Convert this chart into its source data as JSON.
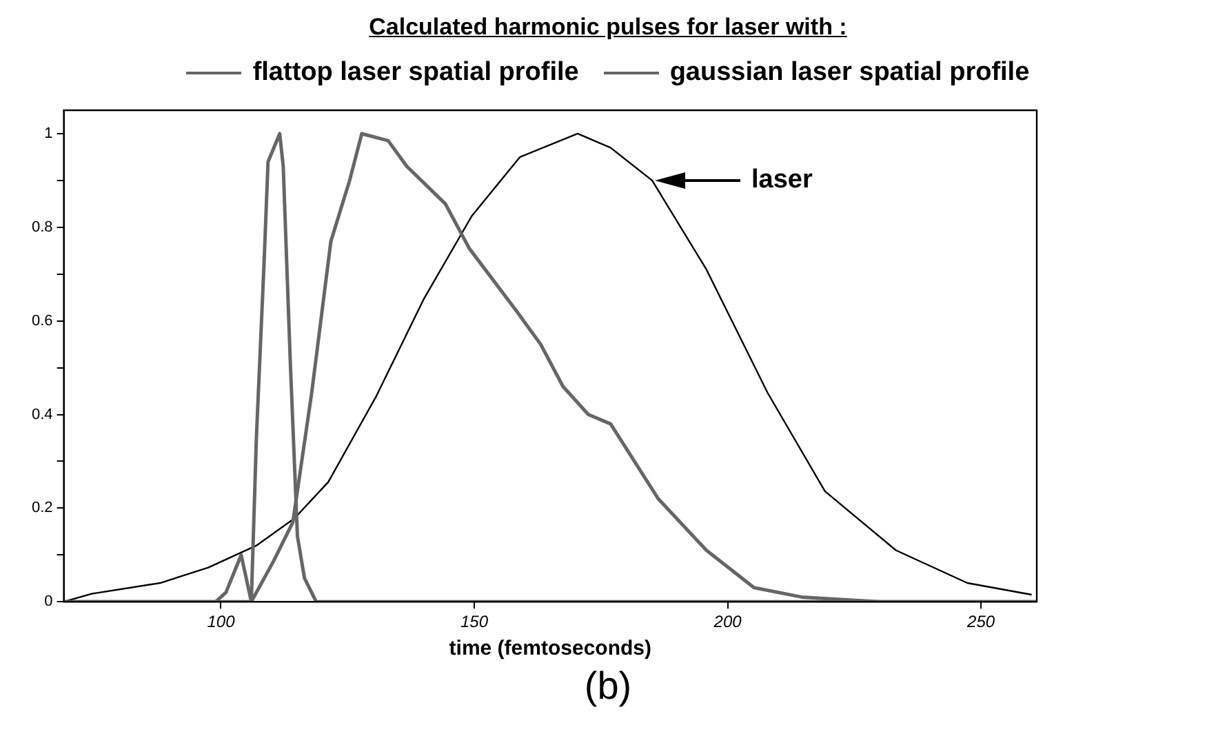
{
  "chart_data": {
    "type": "line",
    "title": "Calculated harmonic pulses for laser with :",
    "xlabel": "time (femtoseconds)",
    "xlim": [
      69,
      261
    ],
    "xticks": [
      100,
      150,
      200,
      250
    ],
    "ylim": [
      0,
      1.05
    ],
    "yticks": [
      0,
      {
        "value": 0.1,
        "label": null
      },
      0.2,
      {
        "value": 0.3,
        "label": null
      },
      0.4,
      {
        "value": 0.5,
        "label": null
      },
      0.6,
      {
        "value": 0.7,
        "label": null
      },
      0.8,
      {
        "value": 0.9,
        "label": null
      },
      1
    ],
    "grid": false,
    "legend": "top",
    "marker": "none",
    "line_style": "solid",
    "series": [
      {
        "name": "flattop laser spatial profile",
        "color": "#666666",
        "x": [
          69,
          99,
          101,
          104,
          106,
          107,
          108.5,
          109.3,
          111.6,
          112.3,
          113.7,
          115.1,
          116.5,
          118.8,
          261
        ],
        "values": [
          0,
          0,
          0.02,
          0.1,
          0,
          0.35,
          0.72,
          0.94,
          1.0,
          0.93,
          0.51,
          0.14,
          0.05,
          0,
          0
        ]
      },
      {
        "name": "gaussian laser spatial profile",
        "color": "#666666",
        "x": [
          69,
          106,
          110.4,
          114.2,
          117.9,
          121.7,
          125.4,
          127.8,
          133,
          136.7,
          144.3,
          149,
          158.4,
          163.1,
          167.5,
          172.5,
          176.9,
          186.3,
          195.8,
          205.2,
          214.6,
          230,
          261
        ],
        "values": [
          0,
          0,
          0.087,
          0.17,
          0.445,
          0.77,
          0.9,
          1.0,
          0.985,
          0.93,
          0.85,
          0.755,
          0.62,
          0.55,
          0.46,
          0.4,
          0.38,
          0.22,
          0.11,
          0.03,
          0.01,
          0,
          0
        ]
      },
      {
        "color": "#000000",
        "x": [
          69,
          74.5,
          88,
          97.5,
          107,
          114.5,
          121.2,
          130.7,
          140,
          149.5,
          159,
          170.4,
          176.9,
          185.1,
          195.8,
          207.9,
          219.2,
          233.2,
          247.3,
          260
        ],
        "values": [
          0,
          0.017,
          0.04,
          0.073,
          0.12,
          0.178,
          0.256,
          0.44,
          0.646,
          0.824,
          0.95,
          1.0,
          0.97,
          0.9,
          0.71,
          0.446,
          0.236,
          0.11,
          0.04,
          0.015
        ]
      }
    ],
    "annotations": [
      "laser",
      "(b)"
    ]
  }
}
